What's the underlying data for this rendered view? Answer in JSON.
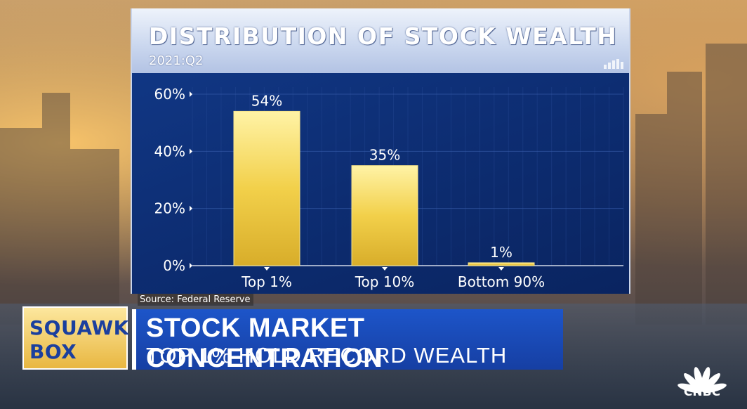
{
  "chart_data": {
    "type": "bar",
    "title": "DISTRIBUTION OF STOCK WEALTH",
    "subtitle": "2021:Q2",
    "categories": [
      "Top 1%",
      "Top 10%",
      "Bottom 90%"
    ],
    "values": [
      54,
      35,
      1
    ],
    "data_labels": [
      "54%",
      "35%",
      "1%"
    ],
    "y_ticks": [
      0,
      20,
      40,
      60
    ],
    "y_tick_labels": [
      "0%",
      "20%",
      "40%",
      "60%"
    ],
    "ylim": [
      0,
      60
    ],
    "grid": true,
    "bar_color": "#f2d04a"
  },
  "source": "Source: Federal Reserve",
  "show": {
    "line1": "SQUAWK",
    "line2": "BOX"
  },
  "lower_third": {
    "headline": "STOCK MARKET CONCENTRATION",
    "subheadline": "TOP 1% HOLD RECORD WEALTH"
  },
  "network": {
    "name": "CNBC",
    "logo_icon": "peacock-icon"
  },
  "colors": {
    "panel": "#0d2d72",
    "accent": "#1d55c9",
    "bar": "#f2d04a"
  }
}
